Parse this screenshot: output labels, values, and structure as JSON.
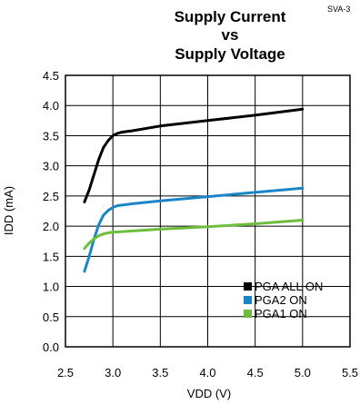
{
  "figure_code": "SVA-3",
  "chart_data": {
    "type": "line",
    "title_lines": [
      "Supply Current",
      "vs",
      "Supply Voltage"
    ],
    "xlabel": "VDD (V)",
    "ylabel": "IDD (mA)",
    "xlim": [
      2.5,
      5.5
    ],
    "ylim": [
      0.0,
      4.5
    ],
    "x_ticks": [
      2.5,
      3.0,
      3.5,
      4.0,
      4.5,
      5.0,
      5.5
    ],
    "y_ticks": [
      0.0,
      0.5,
      1.0,
      1.5,
      2.0,
      2.5,
      3.0,
      3.5,
      4.0,
      4.5
    ],
    "x_tick_labels": [
      "2.5",
      "3.0",
      "3.5",
      "4.0",
      "4.5",
      "5.0",
      "5.5"
    ],
    "y_tick_labels": [
      "0.0",
      "0.5",
      "1.0",
      "1.5",
      "2.0",
      "2.5",
      "3.0",
      "3.5",
      "4.0",
      "4.5"
    ],
    "grid": true,
    "legend_position": "bottom-right",
    "series": [
      {
        "name": "PGA ALL ON",
        "color": "#000000",
        "x": [
          2.7,
          2.75,
          2.8,
          2.85,
          2.9,
          2.95,
          3.0,
          3.05,
          3.1,
          3.2,
          3.5,
          4.0,
          4.5,
          5.0
        ],
        "y": [
          2.4,
          2.6,
          2.85,
          3.1,
          3.3,
          3.42,
          3.5,
          3.54,
          3.56,
          3.58,
          3.66,
          3.75,
          3.84,
          3.94
        ]
      },
      {
        "name": "PGA2 ON",
        "color": "#1a86c8",
        "x": [
          2.7,
          2.75,
          2.8,
          2.85,
          2.9,
          2.95,
          3.0,
          3.05,
          3.1,
          3.2,
          3.5,
          4.0,
          4.5,
          5.0
        ],
        "y": [
          1.25,
          1.5,
          1.78,
          2.02,
          2.18,
          2.26,
          2.31,
          2.34,
          2.35,
          2.37,
          2.42,
          2.49,
          2.56,
          2.63
        ]
      },
      {
        "name": "PGA1 ON",
        "color": "#6cbe3c",
        "x": [
          2.7,
          2.75,
          2.8,
          2.85,
          2.9,
          2.95,
          3.0,
          3.1,
          3.5,
          4.0,
          4.5,
          5.0
        ],
        "y": [
          1.63,
          1.72,
          1.79,
          1.84,
          1.87,
          1.89,
          1.9,
          1.91,
          1.95,
          1.99,
          2.04,
          2.1
        ]
      }
    ]
  }
}
